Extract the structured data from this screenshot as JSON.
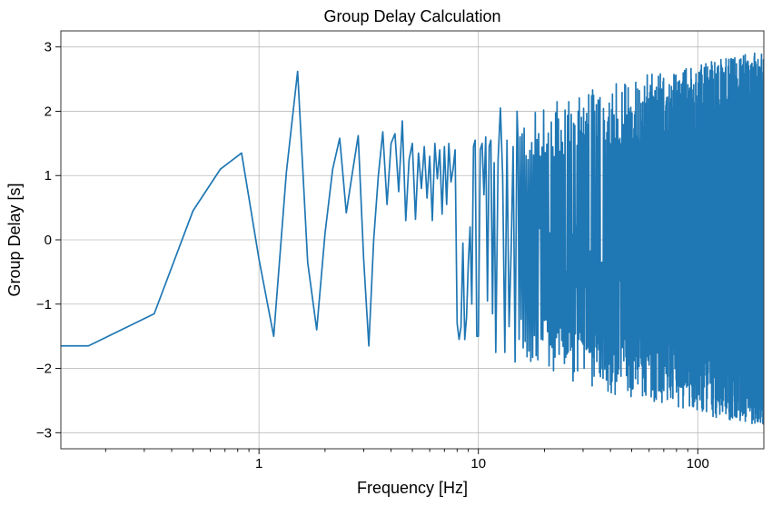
{
  "chart_data": {
    "type": "line",
    "title": "Group Delay Calculation",
    "xlabel": "Frequency [Hz]",
    "ylabel": "Group Delay [s]",
    "xscale": "log",
    "xlim": [
      0.125,
      200
    ],
    "ylim": [
      -3.25,
      3.25
    ],
    "xticks": [
      {
        "value": 1,
        "label": "1"
      },
      {
        "value": 10,
        "label": "10"
      },
      {
        "value": 100,
        "label": "100"
      }
    ],
    "yticks": [
      {
        "value": 3,
        "label": "3"
      },
      {
        "value": 2,
        "label": "2"
      },
      {
        "value": 1,
        "label": "1"
      },
      {
        "value": 0,
        "label": "0"
      },
      {
        "value": -1,
        "label": "−1"
      },
      {
        "value": -2,
        "label": "−2"
      },
      {
        "value": -3,
        "label": "−3"
      }
    ],
    "grid": true,
    "line_color": "#1f77b4",
    "series": [
      {
        "name": "group delay",
        "x": [
          0.125,
          0.167,
          0.333,
          0.5,
          0.667,
          0.833,
          1.0,
          1.167,
          1.333,
          1.5,
          1.667,
          1.833,
          2.0,
          2.167,
          2.333,
          2.5,
          2.667,
          2.833,
          3.0,
          3.167,
          3.333,
          3.5,
          3.667,
          3.833,
          4.0,
          4.167,
          4.333,
          4.5,
          4.667,
          4.833,
          5.0,
          5.167,
          5.333,
          5.5,
          5.667,
          5.833,
          6.0,
          6.167,
          6.333,
          6.5,
          6.667,
          6.833,
          7.0,
          7.167,
          7.333,
          7.5,
          7.667,
          7.833,
          8.0,
          8.167,
          8.333,
          8.5,
          8.667,
          8.833,
          9.0,
          9.167,
          9.333,
          9.5,
          9.667,
          9.833,
          10.0,
          10.2,
          10.4,
          10.6,
          10.8,
          11.0,
          11.2,
          11.4,
          11.6,
          11.8,
          12.0,
          12.3,
          12.6,
          12.9,
          13.2,
          13.5,
          13.8,
          14.1,
          14.4,
          14.7,
          15.0
        ],
        "y": [
          -1.65,
          -1.65,
          -1.15,
          0.45,
          1.1,
          1.35,
          -0.3,
          -1.5,
          1.05,
          2.62,
          -0.35,
          -1.4,
          0.1,
          1.1,
          1.58,
          0.42,
          1.05,
          1.62,
          -0.3,
          -1.65,
          0.0,
          1.0,
          1.68,
          0.55,
          1.5,
          1.65,
          0.75,
          1.85,
          0.3,
          1.25,
          1.5,
          0.32,
          1.35,
          0.8,
          1.45,
          0.65,
          1.3,
          0.3,
          1.5,
          0.95,
          1.4,
          0.4,
          1.45,
          0.55,
          1.5,
          0.9,
          1.1,
          1.4,
          -1.3,
          -1.55,
          -1.35,
          -0.05,
          -1.55,
          -1.2,
          -0.35,
          0.2,
          -1.0,
          1.45,
          1.55,
          -1.5,
          -1.5,
          1.4,
          1.5,
          0.7,
          1.6,
          -0.95,
          1.45,
          1.55,
          -1.15,
          1.2,
          -1.75,
          1.25,
          2.05,
          1.0,
          -1.75,
          1.55,
          -1.35,
          -0.2,
          1.45,
          -1.9,
          2.0
        ]
      }
    ],
    "dense_noise_region": {
      "x_start": 15.0,
      "x_end": 200,
      "amplitude_min": -2.9,
      "amplitude_max": 2.95
    }
  }
}
